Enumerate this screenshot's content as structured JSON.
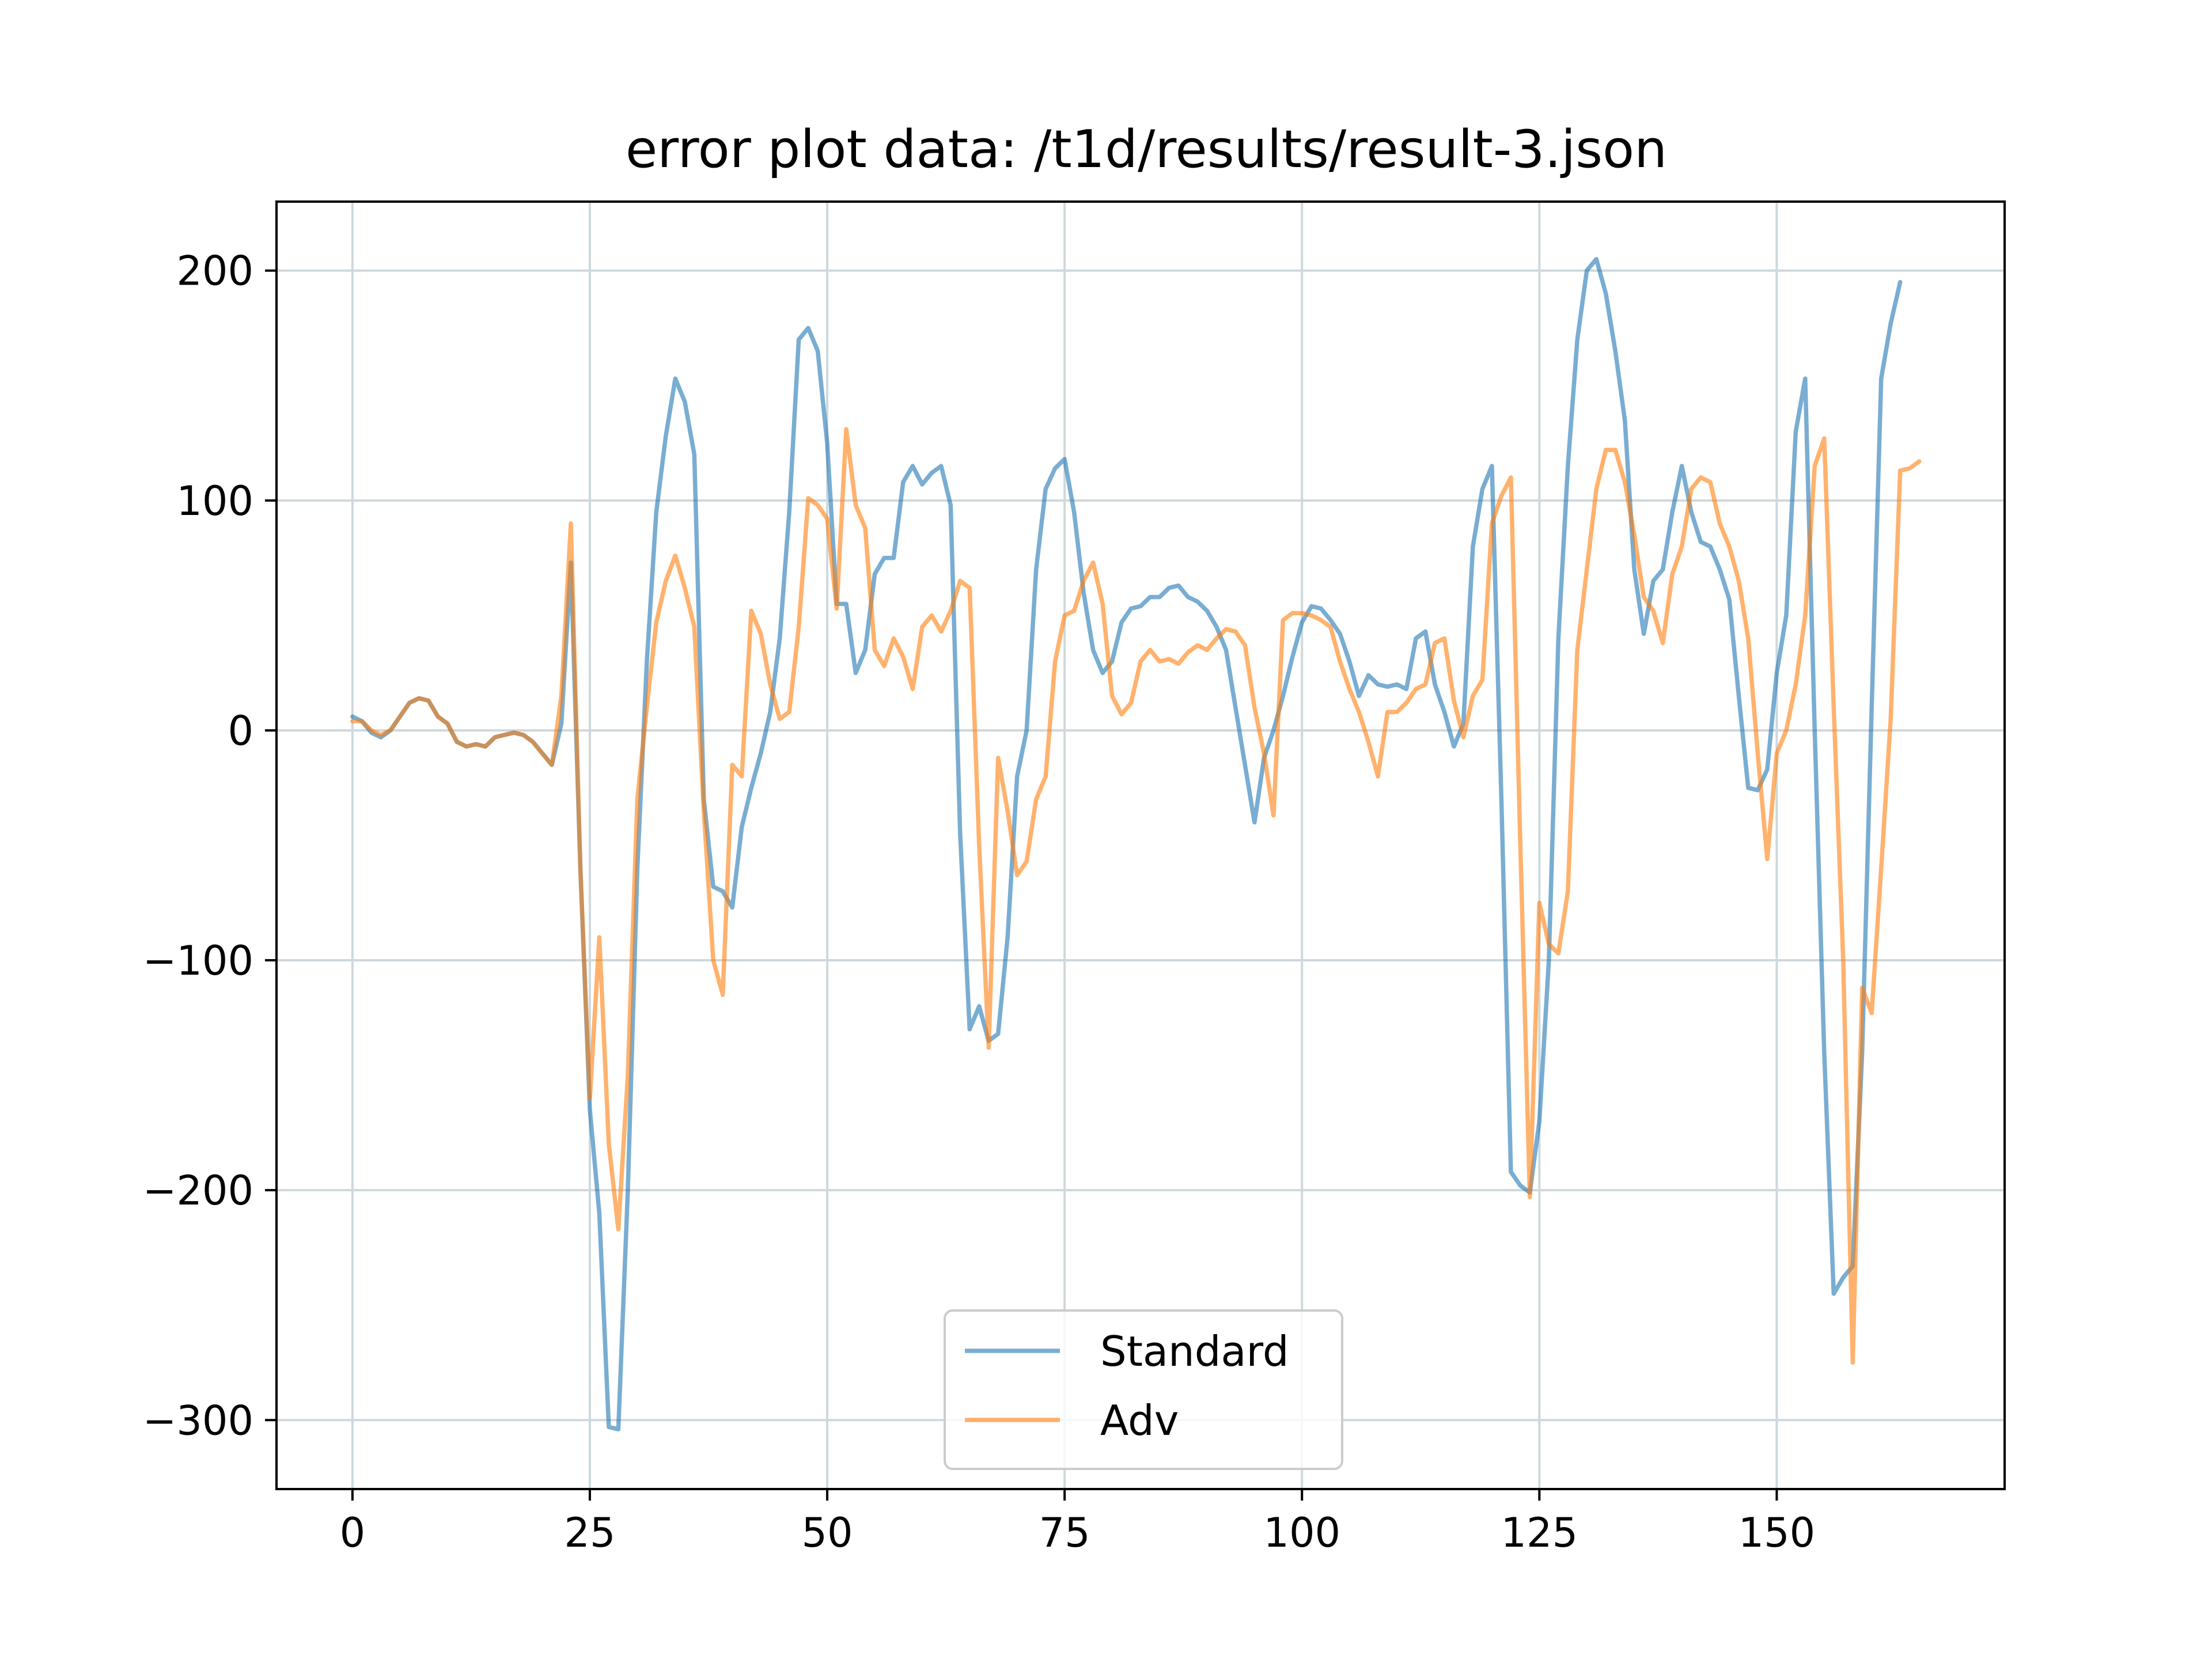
{
  "chart_data": {
    "type": "line",
    "title": "error plot data: /t1d/results/result-3.json",
    "xlabel": "",
    "ylabel": "",
    "xlim": [
      -8,
      174
    ],
    "ylim": [
      -330,
      230
    ],
    "xticks": [
      0,
      25,
      50,
      75,
      100,
      125,
      150
    ],
    "yticks": [
      -300,
      -200,
      -100,
      0,
      100,
      200
    ],
    "xtick_labels": [
      "0",
      "25",
      "50",
      "75",
      "100",
      "125",
      "150"
    ],
    "ytick_labels": [
      "−300",
      "−200",
      "−100",
      "0",
      "100",
      "200"
    ],
    "grid": true,
    "legend_position": "bottom-center",
    "series": [
      {
        "name": "Standard",
        "color": "#1f77b4",
        "opacity": 0.6,
        "values": [
          6,
          4,
          -1,
          -3,
          0,
          6,
          12,
          14,
          13,
          6,
          3,
          -5,
          -7,
          -6,
          -7,
          -3,
          -2,
          -1,
          -2,
          -5,
          -10,
          -15,
          3,
          73,
          -60,
          -165,
          -210,
          -303,
          -304,
          -200,
          -60,
          30,
          95,
          128,
          153,
          143,
          120,
          -30,
          -68,
          -70,
          -77,
          -42,
          -25,
          -10,
          8,
          40,
          95,
          170,
          175,
          165,
          125,
          55,
          55,
          25,
          35,
          68,
          75,
          75,
          108,
          115,
          107,
          112,
          115,
          98,
          -45,
          -130,
          -120,
          -135,
          -132,
          -90,
          -20,
          0,
          70,
          105,
          114,
          118,
          95,
          60,
          35,
          25,
          30,
          47,
          53,
          54,
          58,
          58,
          62,
          63,
          58,
          56,
          52,
          45,
          35,
          10,
          -15,
          -40,
          -12,
          0,
          15,
          32,
          47,
          54,
          53,
          48,
          42,
          30,
          15,
          24,
          20,
          19,
          20,
          18,
          40,
          43,
          20,
          8,
          -7,
          3,
          80,
          105,
          115,
          -30,
          -192,
          -198,
          -201,
          -170,
          -100,
          40,
          115,
          170,
          200,
          205,
          190,
          165,
          135,
          70,
          42,
          65,
          70,
          95,
          115,
          95,
          82,
          80,
          70,
          57,
          15,
          -25,
          -26,
          -17,
          25,
          50,
          130,
          153,
          0,
          -140,
          -245,
          -238,
          -233,
          -140,
          10,
          153,
          177,
          195
        ]
      },
      {
        "name": "Adv",
        "color": "#ff7f0e",
        "opacity": 0.6,
        "values": [
          4,
          4,
          0,
          -2,
          0,
          6,
          12,
          14,
          13,
          6,
          3,
          -5,
          -7,
          -6,
          -7,
          -3,
          -2,
          -1,
          -2,
          -5,
          -10,
          -15,
          15,
          90,
          -60,
          -160,
          -90,
          -180,
          -217,
          -150,
          -30,
          10,
          47,
          65,
          76,
          62,
          45,
          -35,
          -100,
          -115,
          -15,
          -20,
          52,
          42,
          20,
          5,
          8,
          45,
          101,
          98,
          92,
          53,
          131,
          98,
          88,
          35,
          28,
          40,
          32,
          18,
          45,
          50,
          43,
          52,
          65,
          62,
          -50,
          -138,
          -12,
          -35,
          -63,
          -57,
          -30,
          -20,
          30,
          50,
          52,
          65,
          73,
          55,
          15,
          7,
          12,
          30,
          35,
          30,
          31,
          29,
          34,
          37,
          35,
          40,
          44,
          43,
          37,
          10,
          -10,
          -37,
          48,
          51,
          51,
          50,
          48,
          45,
          30,
          18,
          8,
          -5,
          -20,
          8,
          8,
          12,
          18,
          20,
          38,
          40,
          13,
          -3,
          15,
          22,
          90,
          102,
          110,
          -50,
          -203,
          -75,
          -93,
          -97,
          -70,
          35,
          70,
          105,
          122,
          122,
          108,
          85,
          58,
          52,
          38,
          68,
          80,
          105,
          110,
          108,
          90,
          80,
          65,
          40,
          -10,
          -56,
          -10,
          0,
          20,
          50,
          115,
          127,
          10,
          -100,
          -275,
          -112,
          -123,
          -60,
          5,
          113,
          114,
          117
        ]
      }
    ]
  }
}
